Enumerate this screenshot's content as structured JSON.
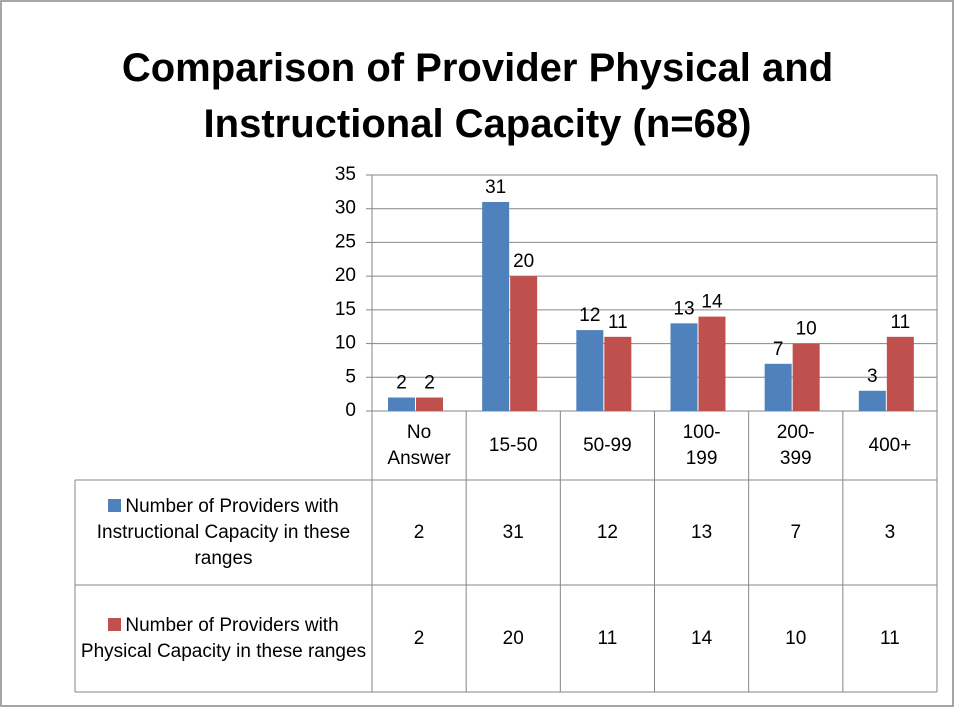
{
  "chart_data": {
    "type": "bar",
    "title": "Comparison of Provider Physical and Instructional Capacity (n=68)",
    "categories": [
      "No Answer",
      "15-50",
      "50-99",
      "100-199",
      "200-399",
      "400+"
    ],
    "series": [
      {
        "name": "Number of Providers with Instructional Capacity in these ranges",
        "color": "#4f81bd",
        "values": [
          2,
          31,
          12,
          13,
          7,
          3
        ]
      },
      {
        "name": "Number of Providers with Physical Capacity in these ranges",
        "color": "#c0504d",
        "values": [
          2,
          20,
          11,
          14,
          10,
          11
        ]
      }
    ],
    "ylim": [
      0,
      35
    ],
    "yticks": [
      0,
      5,
      10,
      15,
      20,
      25,
      30,
      35
    ],
    "grid": true
  }
}
